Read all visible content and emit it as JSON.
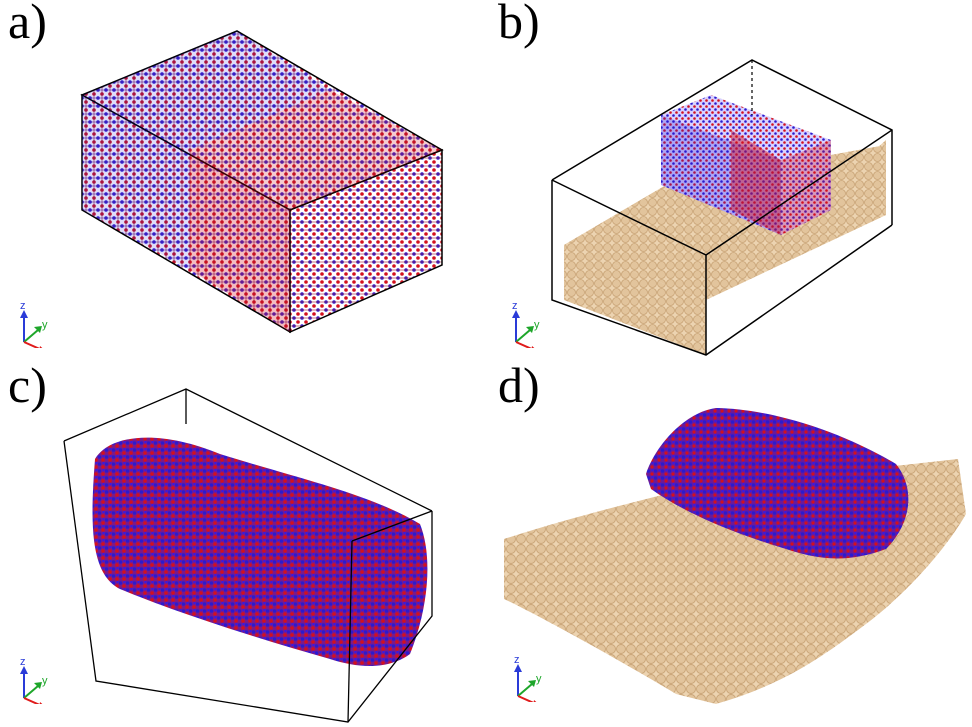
{
  "panels": [
    {
      "id": "a",
      "label": "a)",
      "description_icon": "simulation-box-lattice"
    },
    {
      "id": "b",
      "label": "b)",
      "description_icon": "slab-with-lattice-block"
    },
    {
      "id": "c",
      "label": "c)",
      "description_icon": "disordered-block-in-box"
    },
    {
      "id": "d",
      "label": "d)",
      "description_icon": "droplet-on-substrate"
    }
  ],
  "axes": {
    "z": "z",
    "y": "y",
    "x": "x"
  },
  "colors": {
    "atom_blue": "#2a1ad0",
    "atom_red": "#d3101e",
    "substrate": "#e2c49c",
    "substrate_shade": "#c9a477",
    "box_line": "#000000",
    "axis_z": "#2a3bd8",
    "axis_y": "#1ea62a",
    "axis_x": "#e01b1b"
  }
}
